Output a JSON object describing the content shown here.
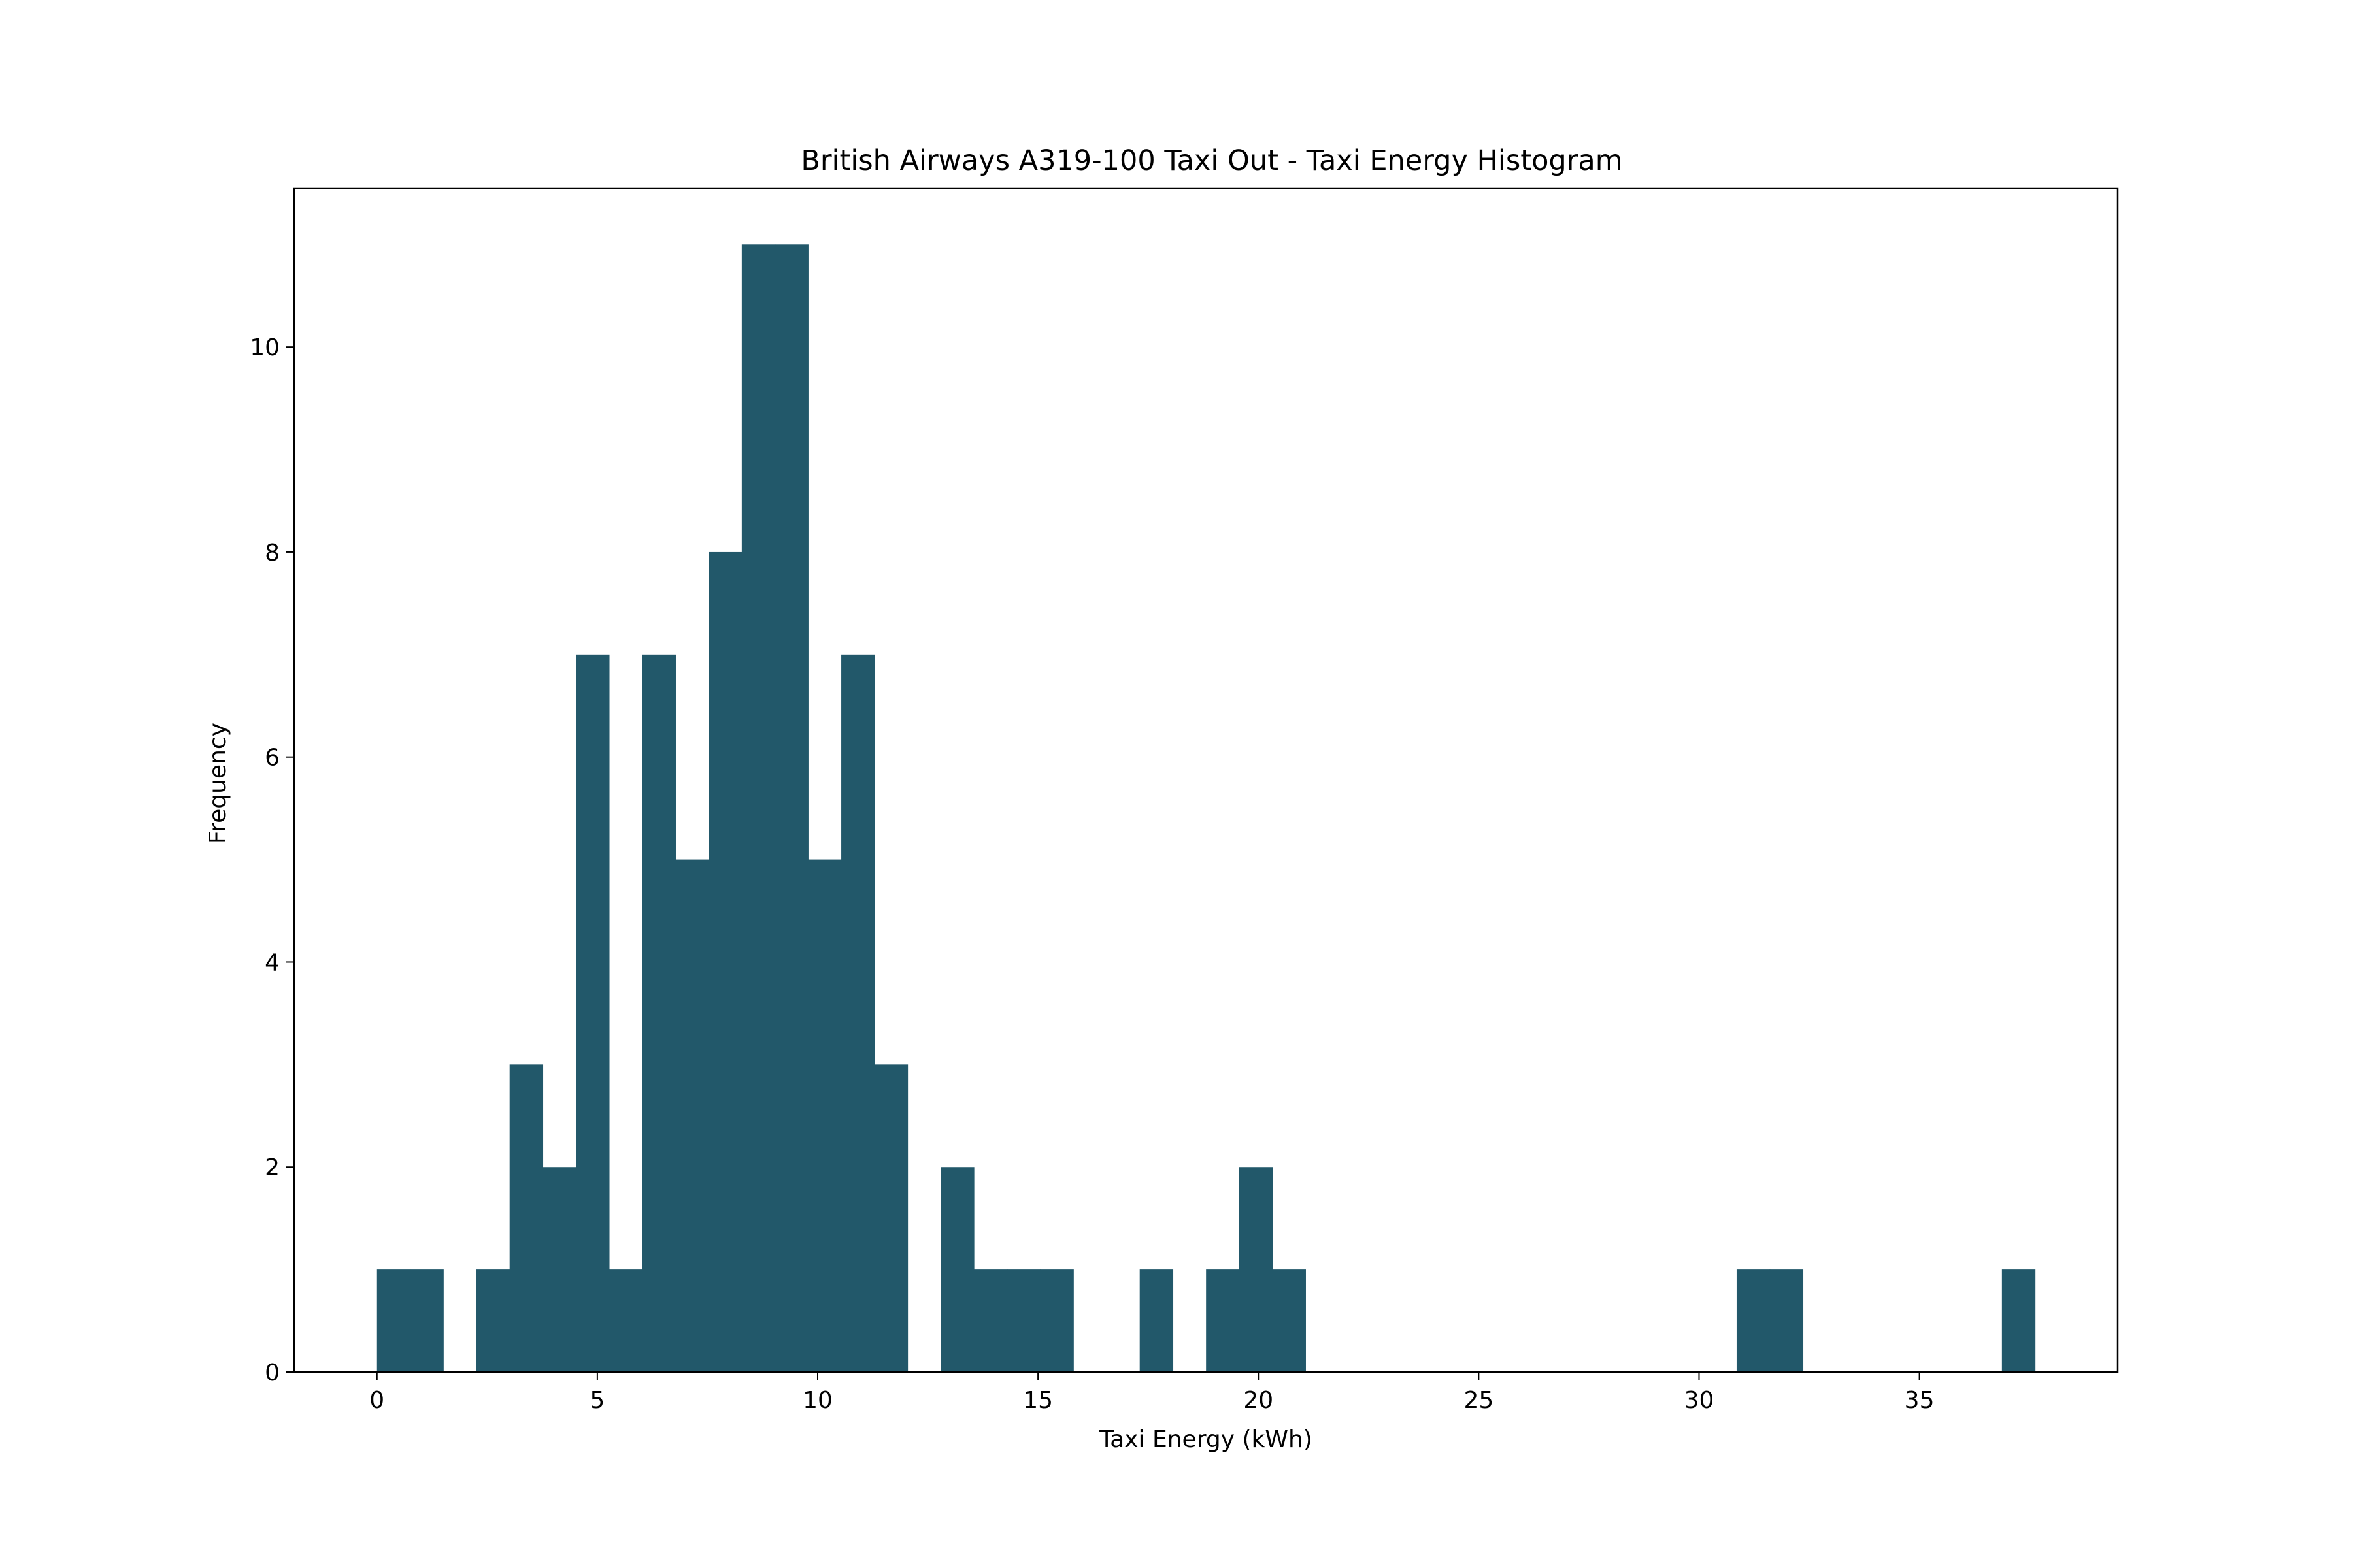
{
  "chart_data": {
    "type": "bar",
    "title": "British Airways A319-100 Taxi Out - Taxi Energy Histogram",
    "xlabel": "Taxi Energy (kWh)",
    "ylabel": "Frequency",
    "bar_color": "#22586a",
    "xlim": [
      -1.88,
      39.5
    ],
    "ylim": [
      0,
      11.55
    ],
    "bin_start": 0.0,
    "bin_width": 0.7525,
    "counts": [
      1,
      1,
      0,
      1,
      3,
      2,
      7,
      1,
      7,
      5,
      8,
      11,
      11,
      5,
      7,
      3,
      0,
      2,
      1,
      1,
      1,
      0,
      0,
      1,
      0,
      1,
      2,
      1,
      0,
      0,
      0,
      0,
      0,
      0,
      0,
      0,
      0,
      0,
      0,
      0,
      0,
      1,
      1,
      0,
      0,
      0,
      0,
      0,
      0,
      1
    ],
    "xticks": [
      0,
      5,
      10,
      15,
      20,
      25,
      30,
      35
    ],
    "yticks": [
      0,
      2,
      4,
      6,
      8,
      10
    ],
    "grid": false,
    "legend": "none"
  }
}
